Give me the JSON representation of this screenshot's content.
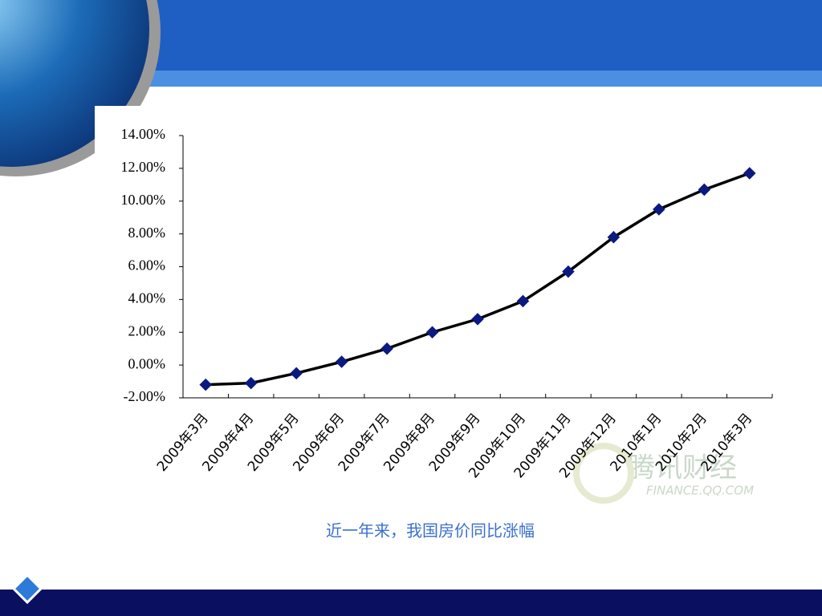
{
  "chart_data": {
    "type": "line",
    "categories": [
      "2009年3月",
      "2009年4月",
      "2009年5月",
      "2009年6月",
      "2009年7月",
      "2009年8月",
      "2009年9月",
      "2009年10月",
      "2009年11月",
      "2009年12月",
      "2010年1月",
      "2010年2月",
      "2010年3月"
    ],
    "values": [
      -1.2,
      -1.1,
      -0.5,
      0.2,
      1.0,
      2.0,
      2.8,
      3.9,
      5.7,
      7.8,
      9.5,
      10.7,
      11.7
    ],
    "color": "#000000",
    "marker_color": "#0a1a80",
    "ylim": [
      -2,
      14
    ],
    "yticks": [
      {
        "value": -2,
        "label": "-2.00%"
      },
      {
        "value": 0,
        "label": "0.00%"
      },
      {
        "value": 2,
        "label": "2.00%"
      },
      {
        "value": 4,
        "label": "4.00%"
      },
      {
        "value": 6,
        "label": "6.00%"
      },
      {
        "value": 8,
        "label": "8.00%"
      },
      {
        "value": 10,
        "label": "10.00%"
      },
      {
        "value": 12,
        "label": "12.00%"
      },
      {
        "value": 14,
        "label": "14.00%"
      }
    ],
    "grid": false,
    "caption": "近一年来，我国房价同比涨幅",
    "watermark": [
      "腾讯财经",
      "FINANCE.QQ.COM"
    ]
  }
}
